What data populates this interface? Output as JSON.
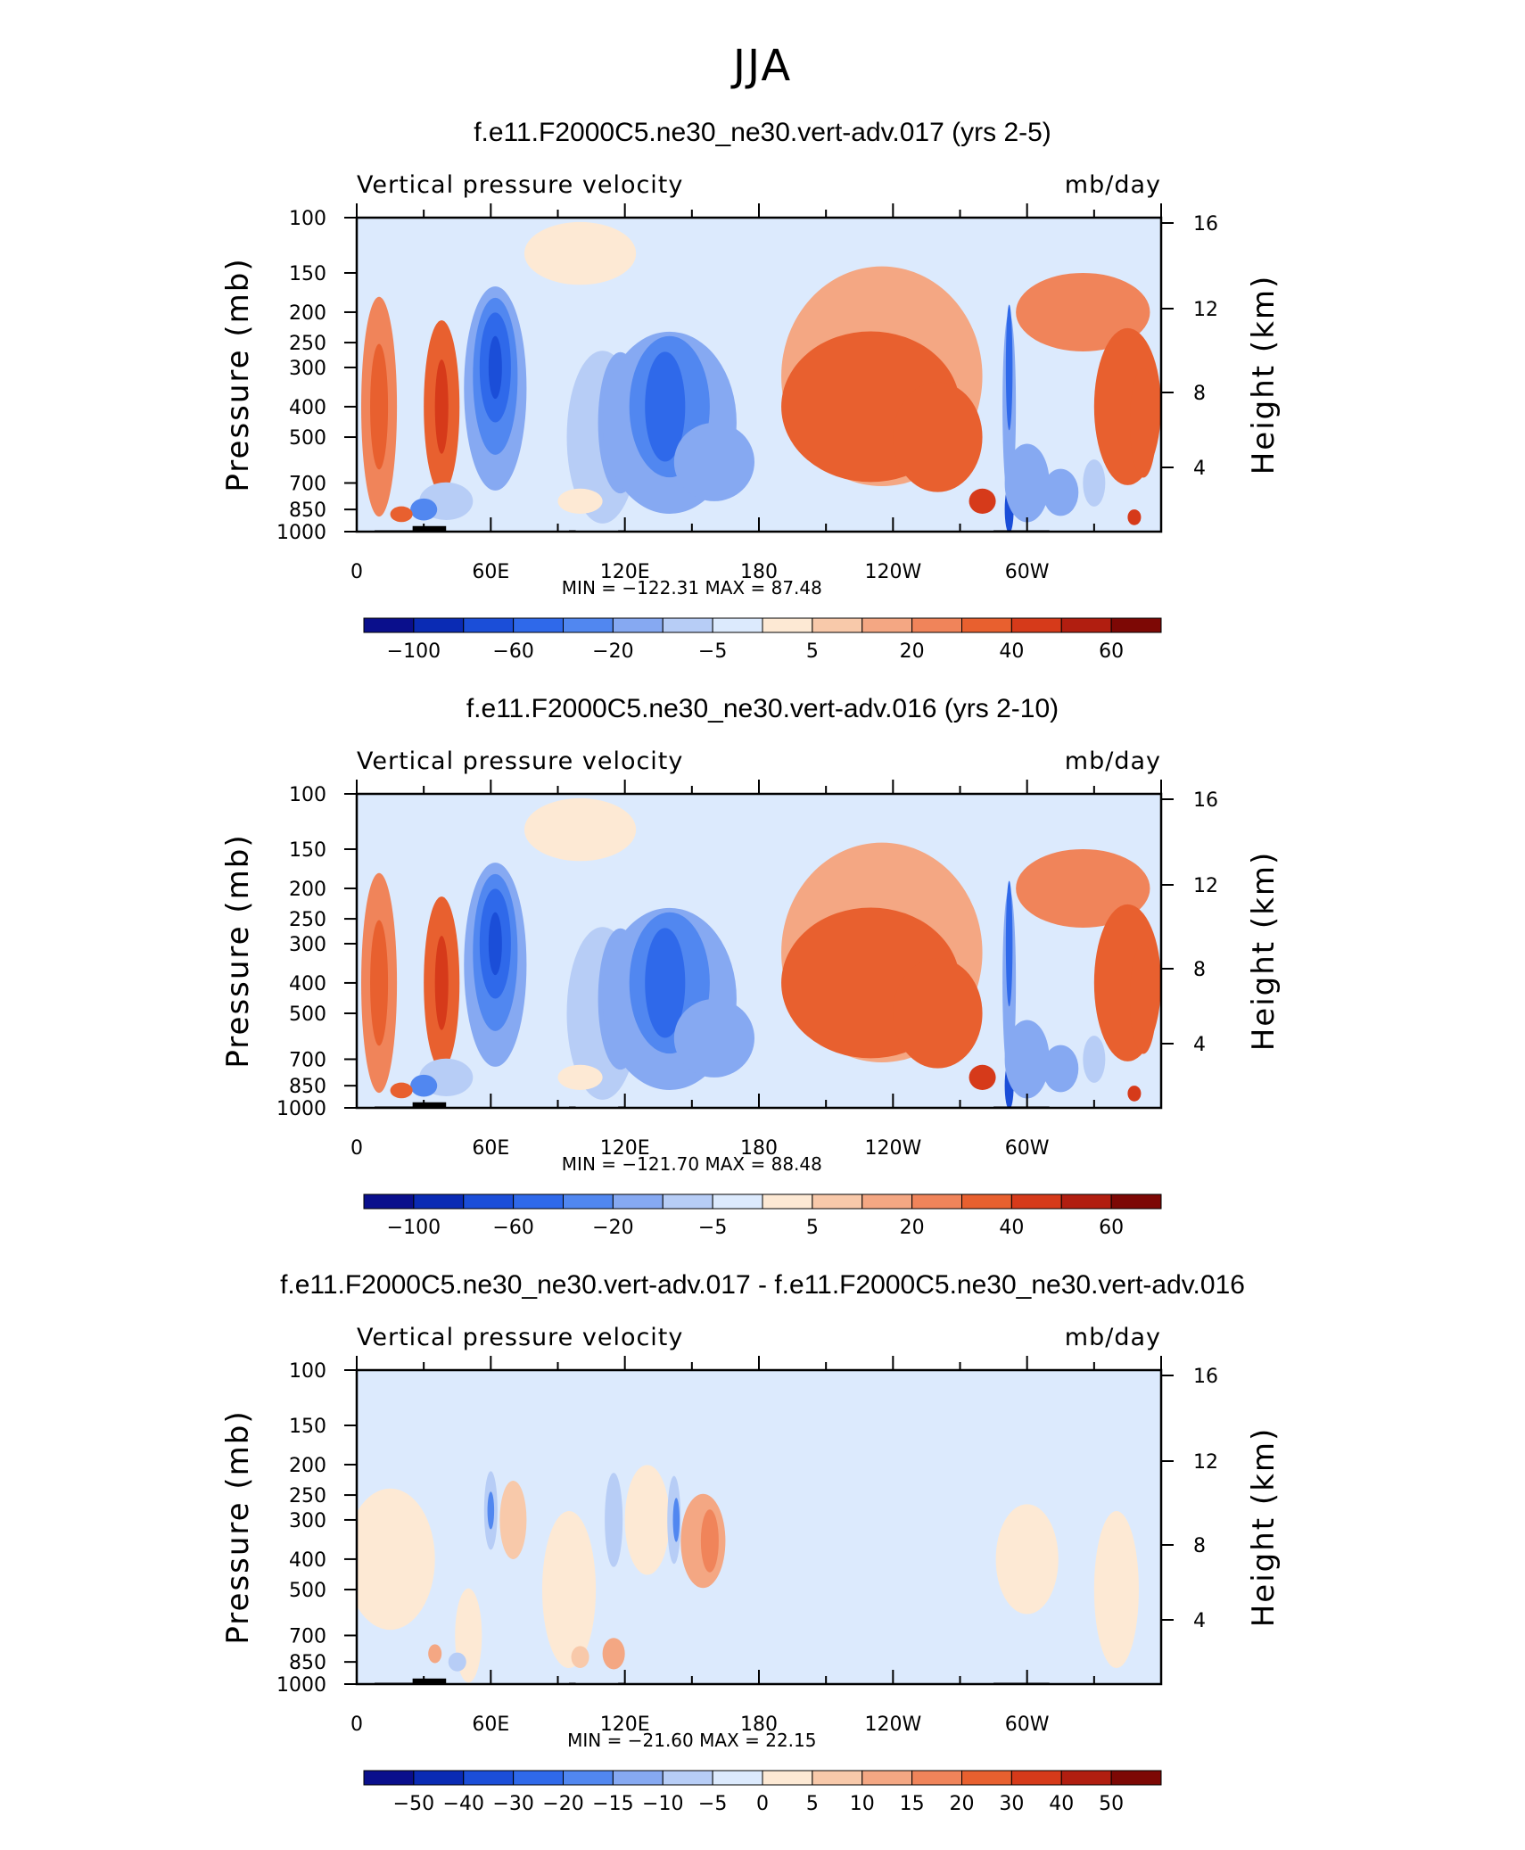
{
  "figure": {
    "season": "JJA"
  },
  "chart_data": [
    {
      "type": "heatmap",
      "title": "f.e11.F2000C5.ne30_ne30.vert-adv.017 (yrs 2-5)",
      "left_label": "Vertical pressure velocity",
      "right_label": "mb/day",
      "ylabel": "Pressure (mb)",
      "y2label": "Height (km)",
      "x_ticks": [
        "0",
        "60E",
        "120E",
        "180",
        "120W",
        "60W"
      ],
      "y_ticks": [
        100,
        150,
        200,
        250,
        300,
        400,
        500,
        700,
        850,
        1000
      ],
      "y2_ticks": [
        16,
        12,
        8,
        4
      ],
      "ylim": [
        1000,
        100
      ],
      "yscale": "log",
      "min_max_text": "MIN = −122.31   MAX =   87.48",
      "min": -122.31,
      "max": 87.48,
      "colorbar_levels": [
        -100,
        -80,
        -60,
        -40,
        -20,
        -10,
        -5,
        0,
        5,
        10,
        20,
        30,
        40,
        50,
        60
      ],
      "colorbar_labels": [
        "−100",
        "−60",
        "−20",
        "−5",
        "5",
        "20",
        "40",
        "60"
      ],
      "colorbar_colors": [
        "#0a0f8c",
        "#0a2bb4",
        "#1b4ed8",
        "#2f69ea",
        "#5187f0",
        "#86a9f2",
        "#b7cdf6",
        "#dceafd",
        "#fde9d4",
        "#f8c9aa",
        "#f4a783",
        "#f0845a",
        "#e8602f",
        "#d63a1a",
        "#b11e10",
        "#7d0805"
      ]
    },
    {
      "type": "heatmap",
      "title": "f.e11.F2000C5.ne30_ne30.vert-adv.016 (yrs 2-10)",
      "left_label": "Vertical pressure velocity",
      "right_label": "mb/day",
      "ylabel": "Pressure (mb)",
      "y2label": "Height (km)",
      "x_ticks": [
        "0",
        "60E",
        "120E",
        "180",
        "120W",
        "60W"
      ],
      "y_ticks": [
        100,
        150,
        200,
        250,
        300,
        400,
        500,
        700,
        850,
        1000
      ],
      "y2_ticks": [
        16,
        12,
        8,
        4
      ],
      "ylim": [
        1000,
        100
      ],
      "yscale": "log",
      "min_max_text": "MIN = −121.70   MAX =   88.48",
      "min": -121.7,
      "max": 88.48,
      "colorbar_levels": [
        -100,
        -80,
        -60,
        -40,
        -20,
        -10,
        -5,
        0,
        5,
        10,
        20,
        30,
        40,
        50,
        60
      ],
      "colorbar_labels": [
        "−100",
        "−60",
        "−20",
        "−5",
        "5",
        "20",
        "40",
        "60"
      ],
      "colorbar_colors": [
        "#0a0f8c",
        "#0a2bb4",
        "#1b4ed8",
        "#2f69ea",
        "#5187f0",
        "#86a9f2",
        "#b7cdf6",
        "#dceafd",
        "#fde9d4",
        "#f8c9aa",
        "#f4a783",
        "#f0845a",
        "#e8602f",
        "#d63a1a",
        "#b11e10",
        "#7d0805"
      ]
    },
    {
      "type": "heatmap",
      "title": "f.e11.F2000C5.ne30_ne30.vert-adv.017 - f.e11.F2000C5.ne30_ne30.vert-adv.016",
      "left_label": "Vertical pressure velocity",
      "right_label": "mb/day",
      "ylabel": "Pressure (mb)",
      "y2label": "Height (km)",
      "x_ticks": [
        "0",
        "60E",
        "120E",
        "180",
        "120W",
        "60W"
      ],
      "y_ticks": [
        100,
        150,
        200,
        250,
        300,
        400,
        500,
        700,
        850,
        1000
      ],
      "y2_ticks": [
        16,
        12,
        8,
        4
      ],
      "ylim": [
        1000,
        100
      ],
      "yscale": "log",
      "min_max_text": "MIN =  −21.60   MAX =   22.15",
      "min": -21.6,
      "max": 22.15,
      "colorbar_levels": [
        -50,
        -40,
        -30,
        -20,
        -15,
        -10,
        -5,
        0,
        5,
        10,
        15,
        20,
        30,
        40,
        50
      ],
      "colorbar_labels": [
        "−50",
        "−40",
        "−30",
        "−20",
        "−15",
        "−10",
        "−5",
        "0",
        "5",
        "10",
        "15",
        "20",
        "30",
        "40",
        "50"
      ],
      "colorbar_colors": [
        "#0a0f8c",
        "#0a2bb4",
        "#1b4ed8",
        "#2f69ea",
        "#5187f0",
        "#86a9f2",
        "#b7cdf6",
        "#dceafd",
        "#fde9d4",
        "#f8c9aa",
        "#f4a783",
        "#f0845a",
        "#e8602f",
        "#d63a1a",
        "#b11e10",
        "#7d0805"
      ]
    }
  ]
}
